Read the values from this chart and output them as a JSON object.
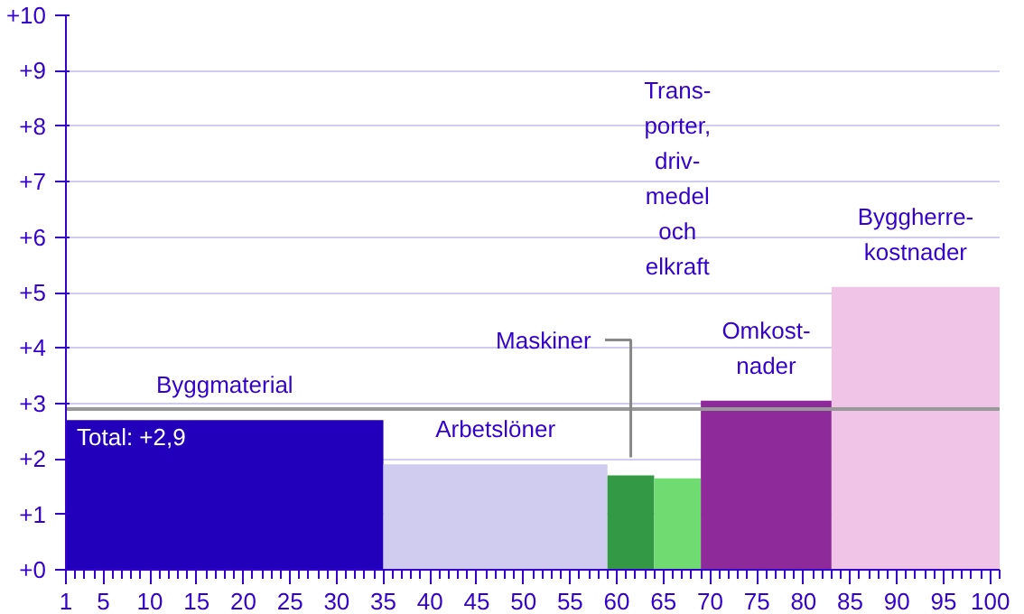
{
  "chart_data": {
    "type": "histogram",
    "bins": [
      1,
      35,
      59,
      64,
      69,
      83,
      101
    ],
    "values": [
      2.7,
      1.9,
      1.7,
      1.65,
      3.05,
      5.1
    ],
    "colors": [
      "#2200bb",
      "#d0ccf0",
      "#339944",
      "#70db70",
      "#8e2a9a",
      "#f0c4e6"
    ],
    "xlim": [
      1,
      101
    ],
    "ylim": [
      0,
      10
    ],
    "xticks": [
      1,
      5,
      10,
      15,
      20,
      25,
      30,
      35,
      40,
      45,
      50,
      55,
      60,
      65,
      70,
      75,
      80,
      85,
      90,
      95,
      100
    ],
    "yticks": [
      {
        "value": 0,
        "label": "+0"
      },
      {
        "value": 1,
        "label": "+1"
      },
      {
        "value": 2,
        "label": "+2"
      },
      {
        "value": 3,
        "label": "+3"
      },
      {
        "value": 4,
        "label": "+4"
      },
      {
        "value": 5,
        "label": "+5"
      },
      {
        "value": 6,
        "label": "+6"
      },
      {
        "value": 7,
        "label": "+7"
      },
      {
        "value": 8,
        "label": "+8"
      },
      {
        "value": 9,
        "label": "+9"
      },
      {
        "value": 10,
        "label": "+10"
      }
    ],
    "grid": "y",
    "ref_lines": [
      {
        "axis": "y",
        "value": 2.9,
        "label": "Total: +2,9",
        "color": "#999999"
      }
    ],
    "annotations": [
      "Byggmaterial",
      "Arbetslöner",
      "Maskiner",
      "Trans-\nporter,\ndriv-\nmedel\noch\nelkraft",
      "Omkost-\nnader",
      "Byggherre-\nkostnader"
    ]
  }
}
